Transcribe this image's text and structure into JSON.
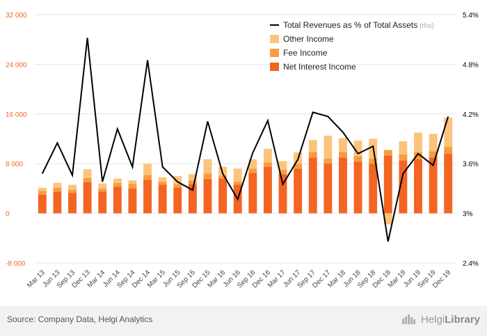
{
  "chart_data": {
    "type": "bar",
    "title": "",
    "categories": [
      "Mar 13",
      "Jun 13",
      "Sep 13",
      "Dec 13",
      "Mar 14",
      "Jun 14",
      "Sep 14",
      "Dec 14",
      "Mar 15",
      "Jun 15",
      "Sep 15",
      "Dec 15",
      "Mar 16",
      "Jun 16",
      "Sep 16",
      "Dec 16",
      "Mar 17",
      "Jun 17",
      "Sep 17",
      "Dec 17",
      "Mar 18",
      "Jun 18",
      "Sep 18",
      "Dec 18",
      "Mar 19",
      "Jun 19",
      "Sep 19",
      "Dec 19"
    ],
    "x_tick_labels": [
      "Mar 13",
      "Jun 13",
      "Sep 13",
      "Dec 13",
      "Mar 14",
      "Jun 14",
      "Sep 14",
      "Dec 14",
      "Mar 15",
      "Jun 15",
      "Sep 15",
      "Dec 15",
      "Mar 16",
      "Jun 16",
      "Sep 16",
      "Dec 16",
      "Mar 17",
      "Jun 17",
      "Sep 17",
      "Dec 17",
      "Mar 18",
      "Jun 18",
      "Sep 18",
      "Dec 18",
      "Mar 19",
      "Jun 19",
      "Sep 19",
      "Dec 19"
    ],
    "series": [
      {
        "name": "Net Interest Income",
        "color": "#f26522",
        "stack": true,
        "values": [
          3000,
          3500,
          3300,
          5000,
          3500,
          4300,
          4000,
          5400,
          4600,
          4100,
          4700,
          5500,
          5600,
          4600,
          6500,
          7500,
          6300,
          7200,
          9000,
          8000,
          9000,
          8300,
          8000,
          9300,
          8500,
          8700,
          9000,
          9600
        ]
      },
      {
        "name": "Fee Income",
        "color": "#f79d3f",
        "stack": true,
        "values": [
          600,
          600,
          500,
          700,
          500,
          600,
          800,
          800,
          500,
          600,
          600,
          900,
          500,
          500,
          700,
          700,
          700,
          800,
          900,
          800,
          900,
          900,
          800,
          900,
          1000,
          1200,
          1000,
          1100
        ]
      },
      {
        "name": "Other Income",
        "color": "#fbc47d",
        "stack": true,
        "values": [
          500,
          800,
          800,
          1400,
          800,
          700,
          500,
          1800,
          700,
          1300,
          1000,
          2300,
          1400,
          2100,
          1500,
          2200,
          1400,
          1800,
          1900,
          3700,
          2200,
          2500,
          3200,
          -1800,
          2100,
          3100,
          2800,
          4700
        ]
      },
      {
        "name": "Total Revenues as % of Total Assets",
        "axis": "rhs",
        "color": "#000000",
        "values": [
          3.48,
          3.85,
          3.46,
          5.12,
          3.38,
          4.02,
          3.56,
          4.85,
          3.56,
          3.38,
          3.28,
          4.11,
          3.48,
          3.17,
          3.73,
          4.12,
          3.35,
          3.65,
          4.22,
          4.17,
          3.98,
          3.72,
          3.81,
          2.66,
          3.48,
          3.72,
          3.58,
          4.17
        ]
      }
    ],
    "ylim": [
      -8000,
      32000
    ],
    "y_ticks": [
      -8000,
      0,
      8000,
      16000,
      24000,
      32000
    ],
    "y_tick_labels": [
      "-8 000",
      "0",
      "8 000",
      "16 000",
      "24 000",
      "32 000"
    ],
    "y2lim": [
      2.4,
      5.4
    ],
    "y2_ticks": [
      2.4,
      3.0,
      3.6,
      4.2,
      4.8,
      5.4
    ],
    "y2_tick_labels": [
      "2.4%",
      "3%",
      "3.6%",
      "4.2%",
      "4.8%",
      "5.4%"
    ],
    "grid": true,
    "legend_position": "top-right",
    "legend": [
      {
        "label": "Total Revenues as % of Total Assets",
        "note": "(rhs)",
        "kind": "line",
        "color": "#000000"
      },
      {
        "label": "Other Income",
        "kind": "box",
        "color": "#fbc47d"
      },
      {
        "label": "Fee Income",
        "kind": "box",
        "color": "#f79d3f"
      },
      {
        "label": "Net Interest Income",
        "kind": "box",
        "color": "#f26522"
      }
    ],
    "xlabel": "",
    "ylabel": ""
  },
  "footer": {
    "source": "Source: Company Data, Helgi Analytics",
    "brand_light": "Helgi",
    "brand_bold": "Library"
  },
  "colors": {
    "left_axis_text": "#f26522",
    "right_axis_text": "#000000",
    "grid": "#e6e6e6"
  }
}
